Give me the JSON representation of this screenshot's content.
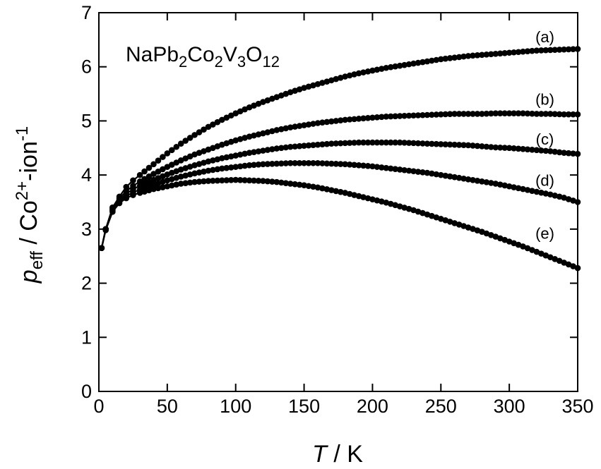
{
  "chart_data": {
    "type": "scatter",
    "title": "",
    "annotation": {
      "parts": [
        {
          "text": "NaPb",
          "sub": false
        },
        {
          "text": "2",
          "sub": true
        },
        {
          "text": "Co",
          "sub": false
        },
        {
          "text": "2",
          "sub": true
        },
        {
          "text": "V",
          "sub": false
        },
        {
          "text": "3",
          "sub": true
        },
        {
          "text": "O",
          "sub": false
        },
        {
          "text": "12",
          "sub": true
        }
      ]
    },
    "xlabel": {
      "italic": "T",
      "rest": " / K"
    },
    "ylabel": {
      "italic": "p",
      "sub": "eff",
      "rest": " / Co",
      "sup": "2+",
      "rest2": "-ion",
      "sup2": "-1"
    },
    "xlim": [
      0,
      350
    ],
    "ylim": [
      0,
      7
    ],
    "xticks": [
      0,
      50,
      100,
      150,
      200,
      250,
      300,
      350
    ],
    "yticks": [
      0,
      1,
      2,
      3,
      4,
      5,
      6,
      7
    ],
    "xtick_labels": [
      "0",
      "50",
      "100",
      "150",
      "200",
      "250",
      "300",
      "350"
    ],
    "ytick_labels": [
      "0",
      "1",
      "2",
      "3",
      "4",
      "5",
      "6",
      "7"
    ],
    "grid": false,
    "series_style": "line-with-filled-circle-markers",
    "series": [
      {
        "name": "(a)",
        "x": [
          2,
          5,
          10,
          15,
          20,
          25,
          30,
          40,
          50,
          60,
          70,
          80,
          90,
          100,
          110,
          120,
          130,
          140,
          150,
          160,
          170,
          180,
          190,
          200,
          210,
          220,
          230,
          240,
          250,
          260,
          270,
          280,
          290,
          300,
          310,
          320,
          330,
          340,
          350
        ],
        "y": [
          2.65,
          3.0,
          3.4,
          3.6,
          3.78,
          3.9,
          4.0,
          4.2,
          4.4,
          4.58,
          4.74,
          4.89,
          5.02,
          5.14,
          5.25,
          5.35,
          5.44,
          5.53,
          5.61,
          5.68,
          5.75,
          5.82,
          5.88,
          5.93,
          5.98,
          6.02,
          6.06,
          6.1,
          6.14,
          6.17,
          6.2,
          6.22,
          6.24,
          6.26,
          6.28,
          6.3,
          6.31,
          6.32,
          6.33
        ]
      },
      {
        "name": "(b)",
        "x": [
          2,
          5,
          10,
          15,
          20,
          25,
          30,
          40,
          50,
          60,
          70,
          80,
          90,
          100,
          110,
          120,
          130,
          140,
          150,
          160,
          170,
          180,
          190,
          200,
          210,
          220,
          230,
          240,
          250,
          260,
          270,
          280,
          290,
          300,
          310,
          320,
          330,
          340,
          350
        ],
        "y": [
          2.65,
          3.0,
          3.38,
          3.57,
          3.7,
          3.8,
          3.88,
          4.02,
          4.15,
          4.27,
          4.38,
          4.47,
          4.56,
          4.64,
          4.71,
          4.77,
          4.83,
          4.88,
          4.92,
          4.96,
          4.99,
          5.02,
          5.04,
          5.06,
          5.08,
          5.09,
          5.1,
          5.11,
          5.12,
          5.13,
          5.13,
          5.13,
          5.14,
          5.14,
          5.14,
          5.13,
          5.13,
          5.12,
          5.12
        ]
      },
      {
        "name": "(c)",
        "x": [
          2,
          5,
          10,
          15,
          20,
          25,
          30,
          40,
          50,
          60,
          70,
          80,
          90,
          100,
          110,
          120,
          130,
          140,
          150,
          160,
          170,
          180,
          190,
          200,
          210,
          220,
          230,
          240,
          250,
          260,
          270,
          280,
          290,
          300,
          310,
          320,
          330,
          340,
          350
        ],
        "y": [
          2.65,
          3.0,
          3.36,
          3.54,
          3.65,
          3.74,
          3.8,
          3.91,
          4.01,
          4.1,
          4.18,
          4.25,
          4.31,
          4.36,
          4.41,
          4.45,
          4.49,
          4.52,
          4.54,
          4.56,
          4.58,
          4.59,
          4.6,
          4.6,
          4.6,
          4.6,
          4.59,
          4.58,
          4.57,
          4.56,
          4.55,
          4.53,
          4.51,
          4.5,
          4.48,
          4.46,
          4.44,
          4.41,
          4.39
        ]
      },
      {
        "name": "(d)",
        "x": [
          2,
          5,
          10,
          15,
          20,
          25,
          30,
          40,
          50,
          60,
          70,
          80,
          90,
          100,
          110,
          120,
          130,
          140,
          150,
          160,
          170,
          180,
          190,
          200,
          210,
          220,
          230,
          240,
          250,
          260,
          270,
          280,
          290,
          300,
          310,
          320,
          330,
          340,
          350
        ],
        "y": [
          2.65,
          3.0,
          3.34,
          3.51,
          3.61,
          3.68,
          3.73,
          3.82,
          3.9,
          3.97,
          4.03,
          4.08,
          4.12,
          4.15,
          4.18,
          4.2,
          4.21,
          4.22,
          4.22,
          4.22,
          4.21,
          4.2,
          4.18,
          4.16,
          4.13,
          4.1,
          4.07,
          4.04,
          4.0,
          3.96,
          3.92,
          3.88,
          3.84,
          3.79,
          3.74,
          3.69,
          3.64,
          3.58,
          3.5
        ]
      },
      {
        "name": "(e)",
        "x": [
          2,
          5,
          10,
          15,
          20,
          25,
          30,
          40,
          50,
          60,
          70,
          80,
          90,
          100,
          110,
          120,
          130,
          140,
          150,
          160,
          170,
          180,
          190,
          200,
          210,
          220,
          230,
          240,
          250,
          260,
          270,
          280,
          290,
          300,
          310,
          320,
          330,
          340,
          350
        ],
        "y": [
          2.65,
          2.98,
          3.32,
          3.48,
          3.57,
          3.63,
          3.67,
          3.74,
          3.79,
          3.84,
          3.87,
          3.89,
          3.9,
          3.91,
          3.9,
          3.89,
          3.87,
          3.84,
          3.81,
          3.77,
          3.72,
          3.67,
          3.61,
          3.55,
          3.49,
          3.42,
          3.35,
          3.27,
          3.19,
          3.11,
          3.03,
          2.95,
          2.86,
          2.77,
          2.68,
          2.58,
          2.48,
          2.38,
          2.28
        ]
      }
    ],
    "series_label_positions": [
      {
        "x": 326,
        "y": 6.45
      },
      {
        "x": 326,
        "y": 5.3
      },
      {
        "x": 326,
        "y": 4.56
      },
      {
        "x": 326,
        "y": 3.8
      },
      {
        "x": 326,
        "y": 2.82
      }
    ]
  }
}
